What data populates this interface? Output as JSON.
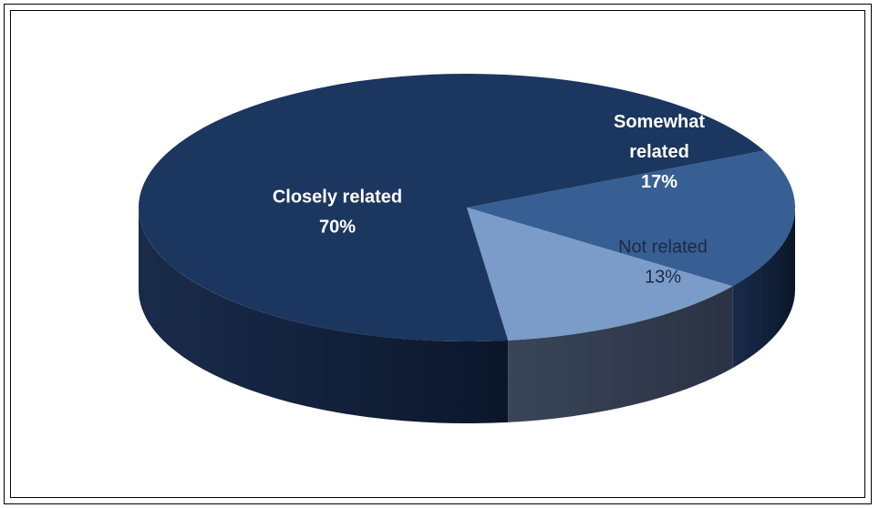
{
  "chart_data": {
    "type": "pie",
    "style": "3d",
    "legend": "none",
    "slices": [
      {
        "label_lines": [
          "Closely related"
        ],
        "value": 70,
        "value_text": "70%",
        "color": "#1b365f",
        "label_style": "bold-white"
      },
      {
        "label_lines": [
          "Somewhat",
          "related"
        ],
        "value": 17,
        "value_text": "17%",
        "color": "#375f93",
        "label_style": "bold-white"
      },
      {
        "label_lines": [
          "Not related"
        ],
        "value": 13,
        "value_text": "13%",
        "color": "#7b9cc8",
        "label_style": "regular-dark"
      }
    ]
  }
}
